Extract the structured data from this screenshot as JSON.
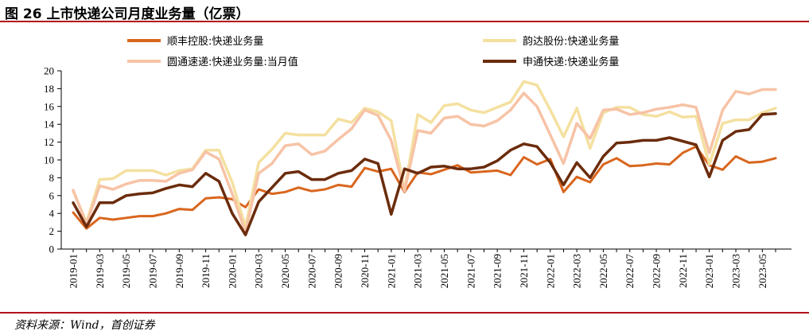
{
  "title": "图 26  上市快递公司月度业务量（亿票）",
  "source": "资料来源：Wind，首创证券",
  "chart_data": {
    "type": "line",
    "title": "图 26  上市快递公司月度业务量（亿票）",
    "xlabel": "",
    "ylabel": "",
    "ylim": [
      0,
      20
    ],
    "yticks": [
      0,
      2,
      4,
      6,
      8,
      10,
      12,
      14,
      16,
      18,
      20
    ],
    "grid": false,
    "legend": "top",
    "x": [
      "2019-01",
      "2019-02",
      "2019-03",
      "2019-04",
      "2019-05",
      "2019-06",
      "2019-07",
      "2019-08",
      "2019-09",
      "2019-10",
      "2019-11",
      "2019-12",
      "2020-01",
      "2020-02",
      "2020-03",
      "2020-04",
      "2020-05",
      "2020-06",
      "2020-07",
      "2020-08",
      "2020-09",
      "2020-10",
      "2020-11",
      "2020-12",
      "2021-01",
      "2021-02",
      "2021-03",
      "2021-04",
      "2021-05",
      "2021-06",
      "2021-07",
      "2021-08",
      "2021-09",
      "2021-10",
      "2021-11",
      "2021-12",
      "2022-01",
      "2022-02",
      "2022-03",
      "2022-04",
      "2022-05",
      "2022-06",
      "2022-07",
      "2022-08",
      "2022-09",
      "2022-10",
      "2022-11",
      "2022-12",
      "2023-01",
      "2023-02",
      "2023-03",
      "2023-04",
      "2023-05",
      "2023-06"
    ],
    "xtick_labels": [
      "2019-01",
      "2019-03",
      "2019-05",
      "2019-07",
      "2019-09",
      "2019-11",
      "2020-01",
      "2020-03",
      "2020-05",
      "2020-07",
      "2020-09",
      "2020-11",
      "2021-01",
      "2021-03",
      "2021-05",
      "2021-07",
      "2021-09",
      "2021-11",
      "2022-01",
      "2022-03",
      "2022-05",
      "2022-07",
      "2022-09",
      "2022-11",
      "2023-01",
      "2023-03",
      "2023-05"
    ],
    "series": [
      {
        "name": "顺丰控股:快递业务量",
        "color": "#d9661e",
        "width": 3,
        "values": [
          4.1,
          2.3,
          3.5,
          3.3,
          3.5,
          3.7,
          3.7,
          4.0,
          4.5,
          4.4,
          5.7,
          5.8,
          5.6,
          4.7,
          6.7,
          6.2,
          6.4,
          6.9,
          6.5,
          6.7,
          7.2,
          7.0,
          9.1,
          8.7,
          9.0,
          6.4,
          8.6,
          8.4,
          8.9,
          9.4,
          8.6,
          8.7,
          8.8,
          8.3,
          10.3,
          9.5,
          10.1,
          6.4,
          8.1,
          7.5,
          9.5,
          10.2,
          9.3,
          9.4,
          9.6,
          9.5,
          10.8,
          11.5,
          9.4,
          8.9,
          10.4,
          9.7,
          9.8,
          10.2
        ]
      },
      {
        "name": "韵达股份:快递业务量",
        "color": "#f4e0a0",
        "width": 3.5,
        "values": [
          6.5,
          3.0,
          7.8,
          7.9,
          8.8,
          8.8,
          8.8,
          8.3,
          8.8,
          9.0,
          11.1,
          11.1,
          7.5,
          2.5,
          9.7,
          11.2,
          13.0,
          12.8,
          12.8,
          12.8,
          14.6,
          14.2,
          15.8,
          15.4,
          14.4,
          6.6,
          15.1,
          14.2,
          16.1,
          16.3,
          15.6,
          15.3,
          15.9,
          16.5,
          18.8,
          18.4,
          15.6,
          12.6,
          15.8,
          11.3,
          15.3,
          15.9,
          15.9,
          15.1,
          14.9,
          15.4,
          14.8,
          14.9,
          9.5,
          14.1,
          14.5,
          14.5,
          15.3,
          15.8
        ]
      },
      {
        "name": "圆通速递:快递业务量:当月值",
        "color": "#f7c3a6",
        "width": 3.5,
        "values": [
          6.6,
          2.8,
          7.1,
          6.7,
          7.3,
          7.7,
          7.7,
          7.6,
          8.5,
          8.9,
          10.9,
          10.1,
          6.2,
          1.9,
          8.5,
          9.6,
          11.6,
          11.8,
          10.6,
          11.0,
          12.3,
          13.5,
          15.6,
          15.0,
          12.2,
          6.5,
          13.3,
          13.0,
          14.7,
          14.9,
          14.0,
          13.8,
          14.4,
          15.6,
          17.5,
          16.0,
          12.8,
          9.6,
          14.1,
          12.4,
          15.6,
          15.7,
          15.1,
          15.3,
          15.7,
          15.9,
          16.2,
          15.9,
          10.8,
          15.6,
          17.7,
          17.4,
          17.9,
          17.9
        ]
      },
      {
        "name": "申通快递:快递业务量",
        "color": "#6b2c0c",
        "width": 3.5,
        "values": [
          5.2,
          2.5,
          5.2,
          5.2,
          6.0,
          6.2,
          6.3,
          6.8,
          7.2,
          7.0,
          8.5,
          7.6,
          4.0,
          1.6,
          5.3,
          6.9,
          8.5,
          8.7,
          7.8,
          7.8,
          8.5,
          8.8,
          10.1,
          9.6,
          3.9,
          9.0,
          8.5,
          9.2,
          9.3,
          9.0,
          9.0,
          9.2,
          9.9,
          11.1,
          11.8,
          11.5,
          9.7,
          7.2,
          9.7,
          8.0,
          10.4,
          11.9,
          12.0,
          12.2,
          12.2,
          12.5,
          12.1,
          11.7,
          8.1,
          12.2,
          13.2,
          13.4,
          15.1,
          15.2
        ]
      }
    ]
  }
}
